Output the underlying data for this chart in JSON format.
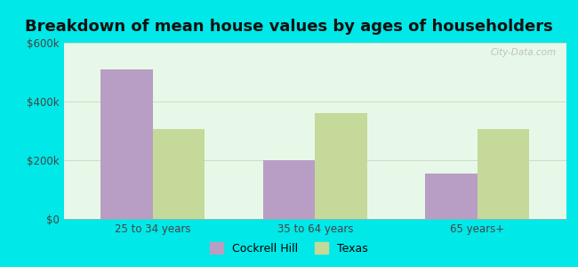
{
  "title": "Breakdown of mean house values by ages of householders",
  "categories": [
    "25 to 34 years",
    "35 to 64 years",
    "65 years+"
  ],
  "cockrell_hill": [
    510000,
    200000,
    155000
  ],
  "texas": [
    305000,
    360000,
    305000
  ],
  "bar_color_cockrell": "#b89ec4",
  "bar_color_texas": "#c5d99a",
  "ylim": [
    0,
    600000
  ],
  "yticks": [
    0,
    200000,
    400000,
    600000
  ],
  "ytick_labels": [
    "$0",
    "$200k",
    "$400k",
    "$600k"
  ],
  "legend_cockrell": "Cockrell Hill",
  "legend_texas": "Texas",
  "background_outer": "#00e8e8",
  "background_inner": "#e8f8e8",
  "title_fontsize": 13,
  "bar_width": 0.32,
  "watermark": "City-Data.com"
}
